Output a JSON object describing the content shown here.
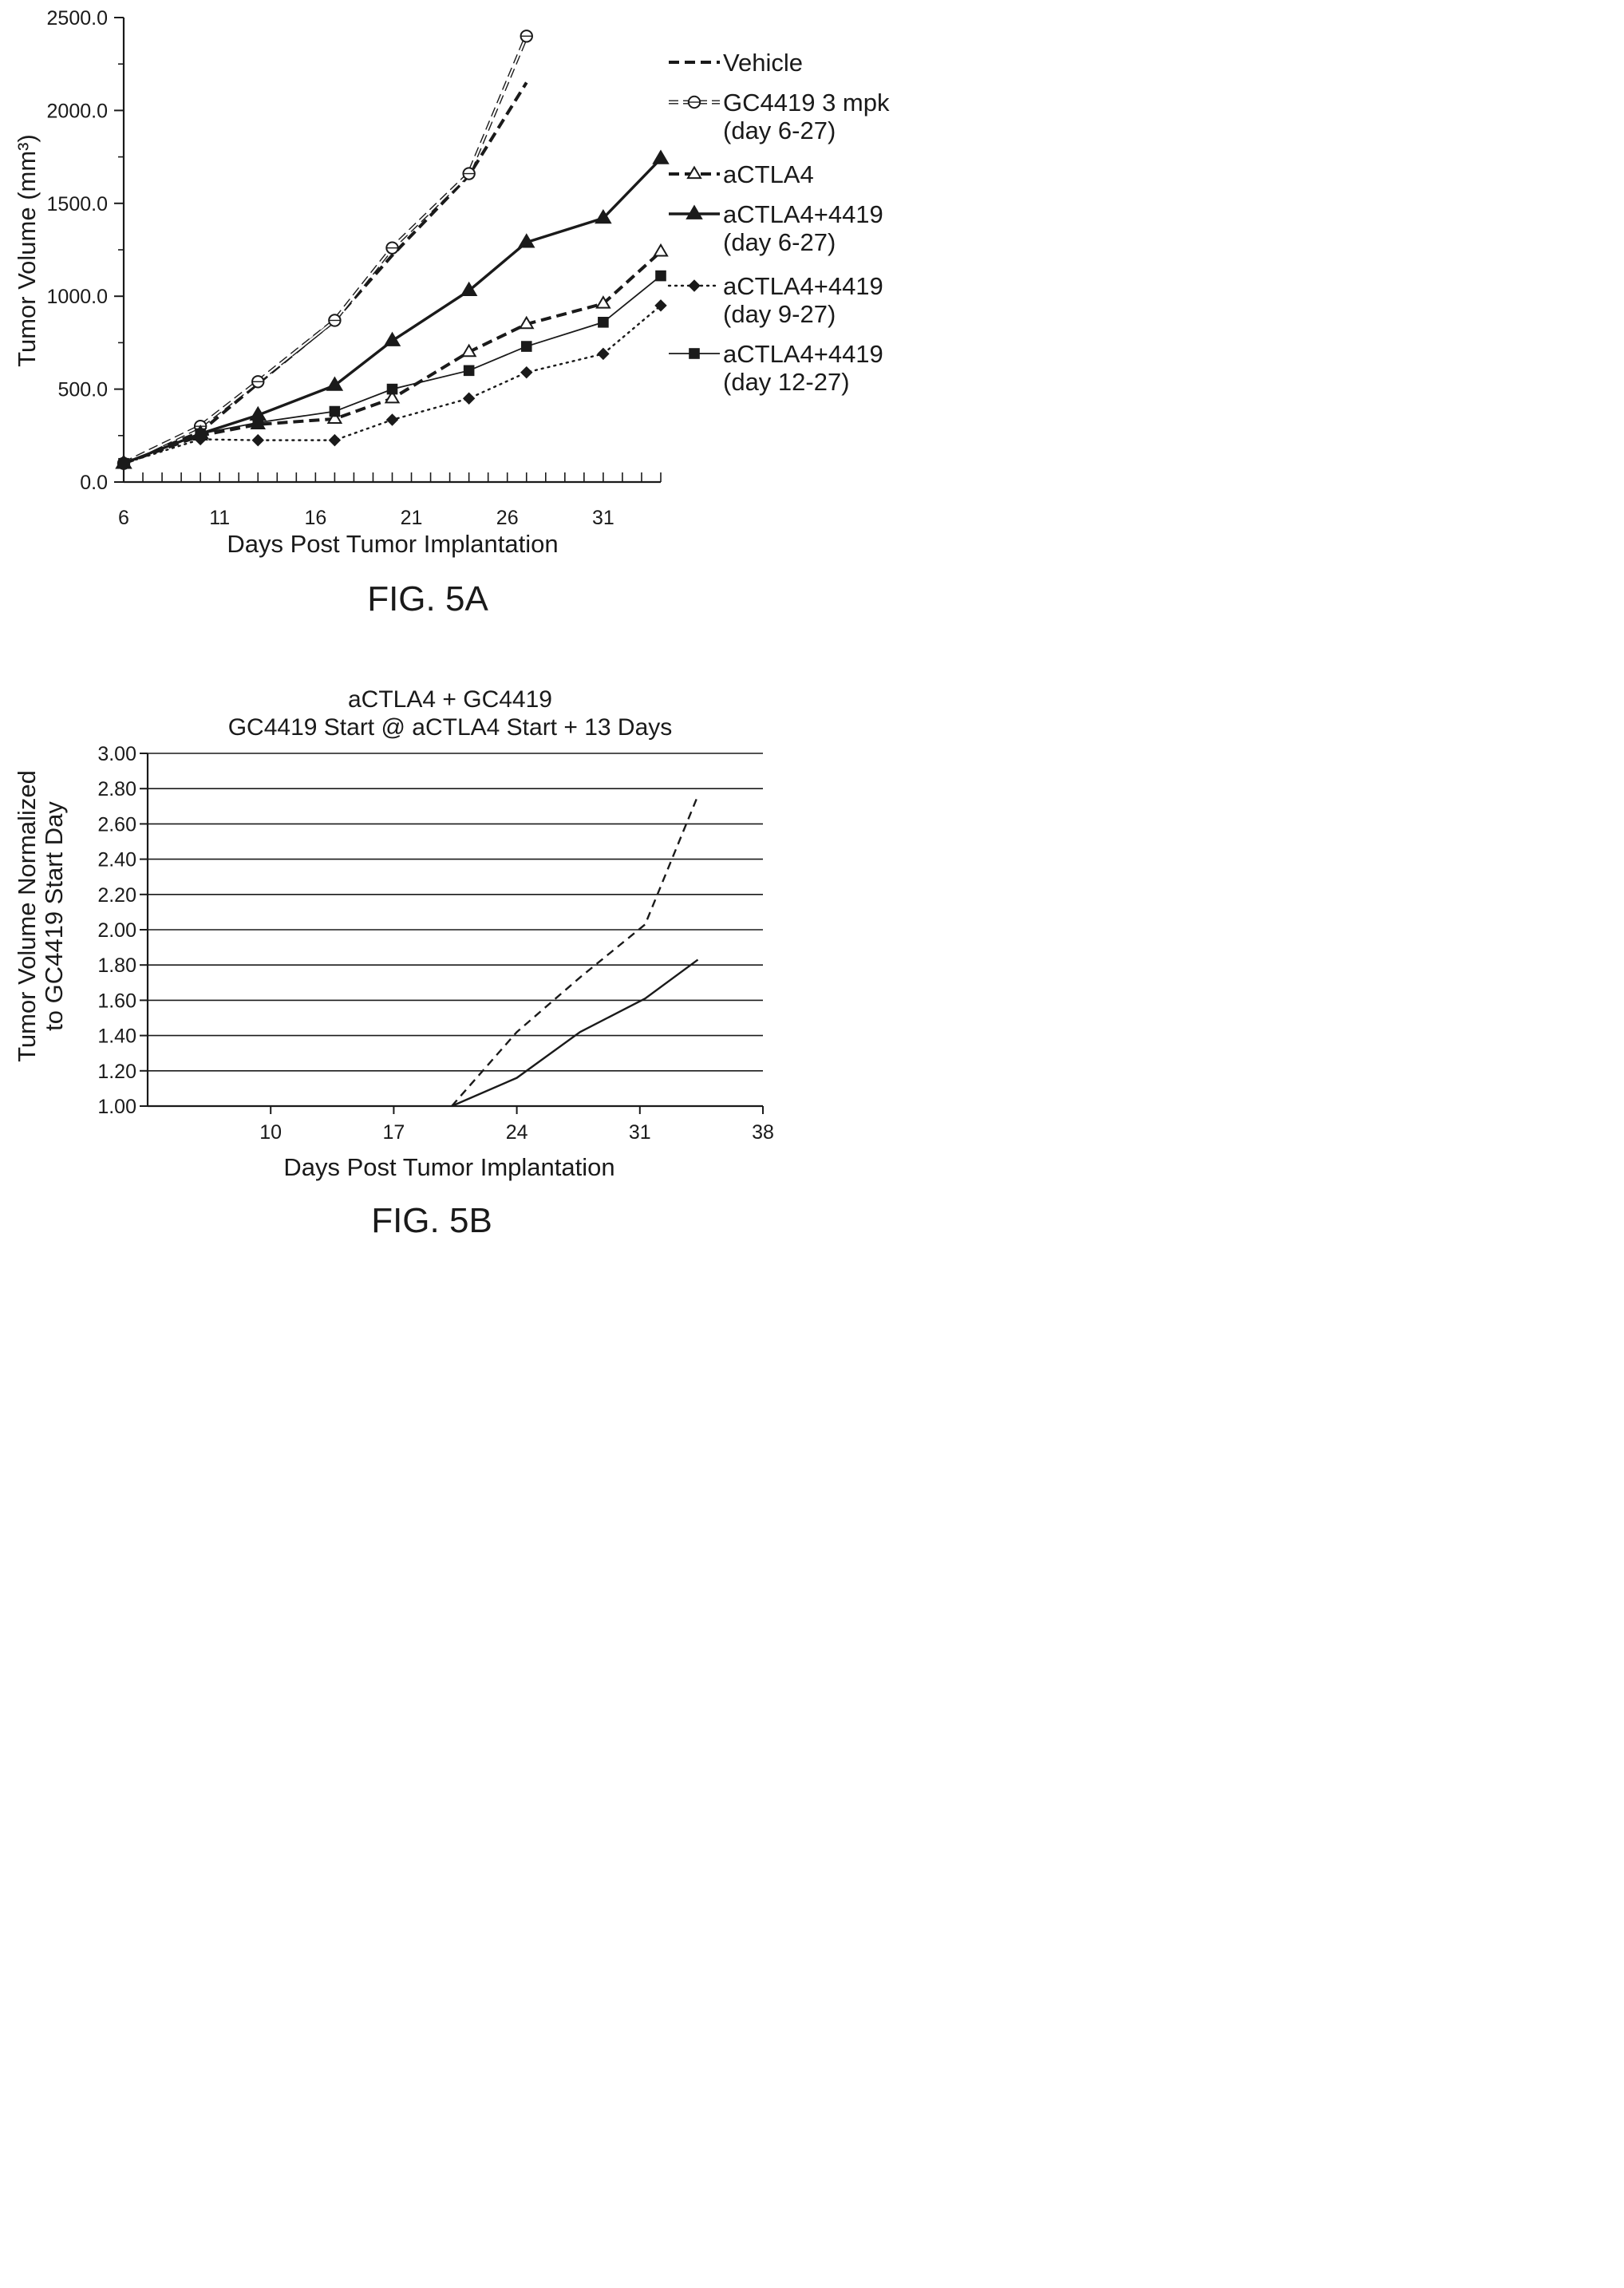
{
  "figures": [
    {
      "caption": "FIG. 5A"
    },
    {
      "caption": "FIG. 5B"
    }
  ],
  "chart_data": [
    {
      "type": "line",
      "title": "",
      "xlabel": "Days Post Tumor Implantation",
      "ylabel": "Tumor Volume (mm³)",
      "xlim": [
        6,
        34
      ],
      "ylim": [
        0,
        2500
      ],
      "xticks": [
        "6",
        "11",
        "16",
        "21",
        "26",
        "31"
      ],
      "xtick_values": [
        6,
        11,
        16,
        21,
        26,
        31
      ],
      "yticks": [
        "0.0",
        "500.0",
        "1000.0",
        "1500.0",
        "2000.0",
        "2500.0"
      ],
      "ytick_values": [
        0,
        500,
        1000,
        1500,
        2000,
        2500
      ],
      "legend_position": "right",
      "series": [
        {
          "name": "Vehicle",
          "line_style": "dashed-bold",
          "marker": "none",
          "x": [
            6,
            10,
            13,
            17,
            20,
            24,
            27
          ],
          "y": [
            100,
            270,
            530,
            870,
            1220,
            1650,
            2150
          ]
        },
        {
          "name": "GC4419 3 mpk\n(day 6-27)",
          "line_style": "double-dashed",
          "marker": "open-circle",
          "x": [
            6,
            10,
            13,
            17,
            20,
            24,
            27
          ],
          "y": [
            100,
            300,
            540,
            870,
            1260,
            1660,
            2400
          ]
        },
        {
          "name": "aCTLA4",
          "line_style": "dashed-bold",
          "marker": "open-triangle",
          "x": [
            6,
            10,
            13,
            17,
            20,
            24,
            27,
            31,
            34
          ],
          "y": [
            100,
            250,
            310,
            340,
            450,
            700,
            850,
            960,
            1240
          ]
        },
        {
          "name": "aCTLA4+4419\n(day 6-27)",
          "line_style": "solid-bold",
          "marker": "filled-triangle",
          "x": [
            6,
            10,
            13,
            17,
            20,
            24,
            27,
            31,
            34
          ],
          "y": [
            100,
            260,
            360,
            520,
            760,
            1030,
            1290,
            1420,
            1740
          ]
        },
        {
          "name": "aCTLA4+4419\n(day 9-27)",
          "line_style": "dotted",
          "marker": "filled-diamond",
          "x": [
            6,
            10,
            13,
            17,
            20,
            24,
            27,
            31,
            34
          ],
          "y": [
            100,
            230,
            225,
            225,
            335,
            450,
            590,
            690,
            950
          ]
        },
        {
          "name": "aCTLA4+4419\n(day 12-27)",
          "line_style": "solid-thin",
          "marker": "filled-square",
          "x": [
            6,
            10,
            13,
            17,
            20,
            24,
            27,
            31,
            34
          ],
          "y": [
            100,
            260,
            320,
            380,
            500,
            600,
            730,
            860,
            1110
          ]
        }
      ]
    },
    {
      "type": "line",
      "title": "aCTLA4 + GC4419\nGC4419 Start @ aCTLA4 Start + 13 Days",
      "xlabel": "Days Post Tumor Implantation",
      "ylabel": "Tumor Volume Normalized\nto GC4419 Start Day",
      "xlim": [
        3,
        38
      ],
      "ylim": [
        1.0,
        3.0
      ],
      "xticks": [
        "10",
        "17",
        "24",
        "31",
        "38"
      ],
      "xtick_values": [
        10,
        17,
        24,
        31,
        38
      ],
      "yticks": [
        "1.00",
        "1.20",
        "1.40",
        "1.60",
        "1.80",
        "2.00",
        "2.20",
        "2.40",
        "2.60",
        "2.80",
        "3.00"
      ],
      "ytick_values": [
        1.0,
        1.2,
        1.4,
        1.6,
        1.8,
        2.0,
        2.2,
        2.4,
        2.6,
        2.8,
        3.0
      ],
      "grid": "horizontal",
      "series": [
        {
          "line_style": "dashed",
          "x": [
            20.3,
            24,
            27.6,
            31.3,
            34.3
          ],
          "y": [
            1.0,
            1.42,
            1.73,
            2.03,
            2.76
          ]
        },
        {
          "line_style": "solid",
          "x": [
            20.3,
            24,
            27.6,
            31.3,
            34.3
          ],
          "y": [
            1.0,
            1.16,
            1.42,
            1.61,
            1.83
          ]
        }
      ]
    }
  ]
}
